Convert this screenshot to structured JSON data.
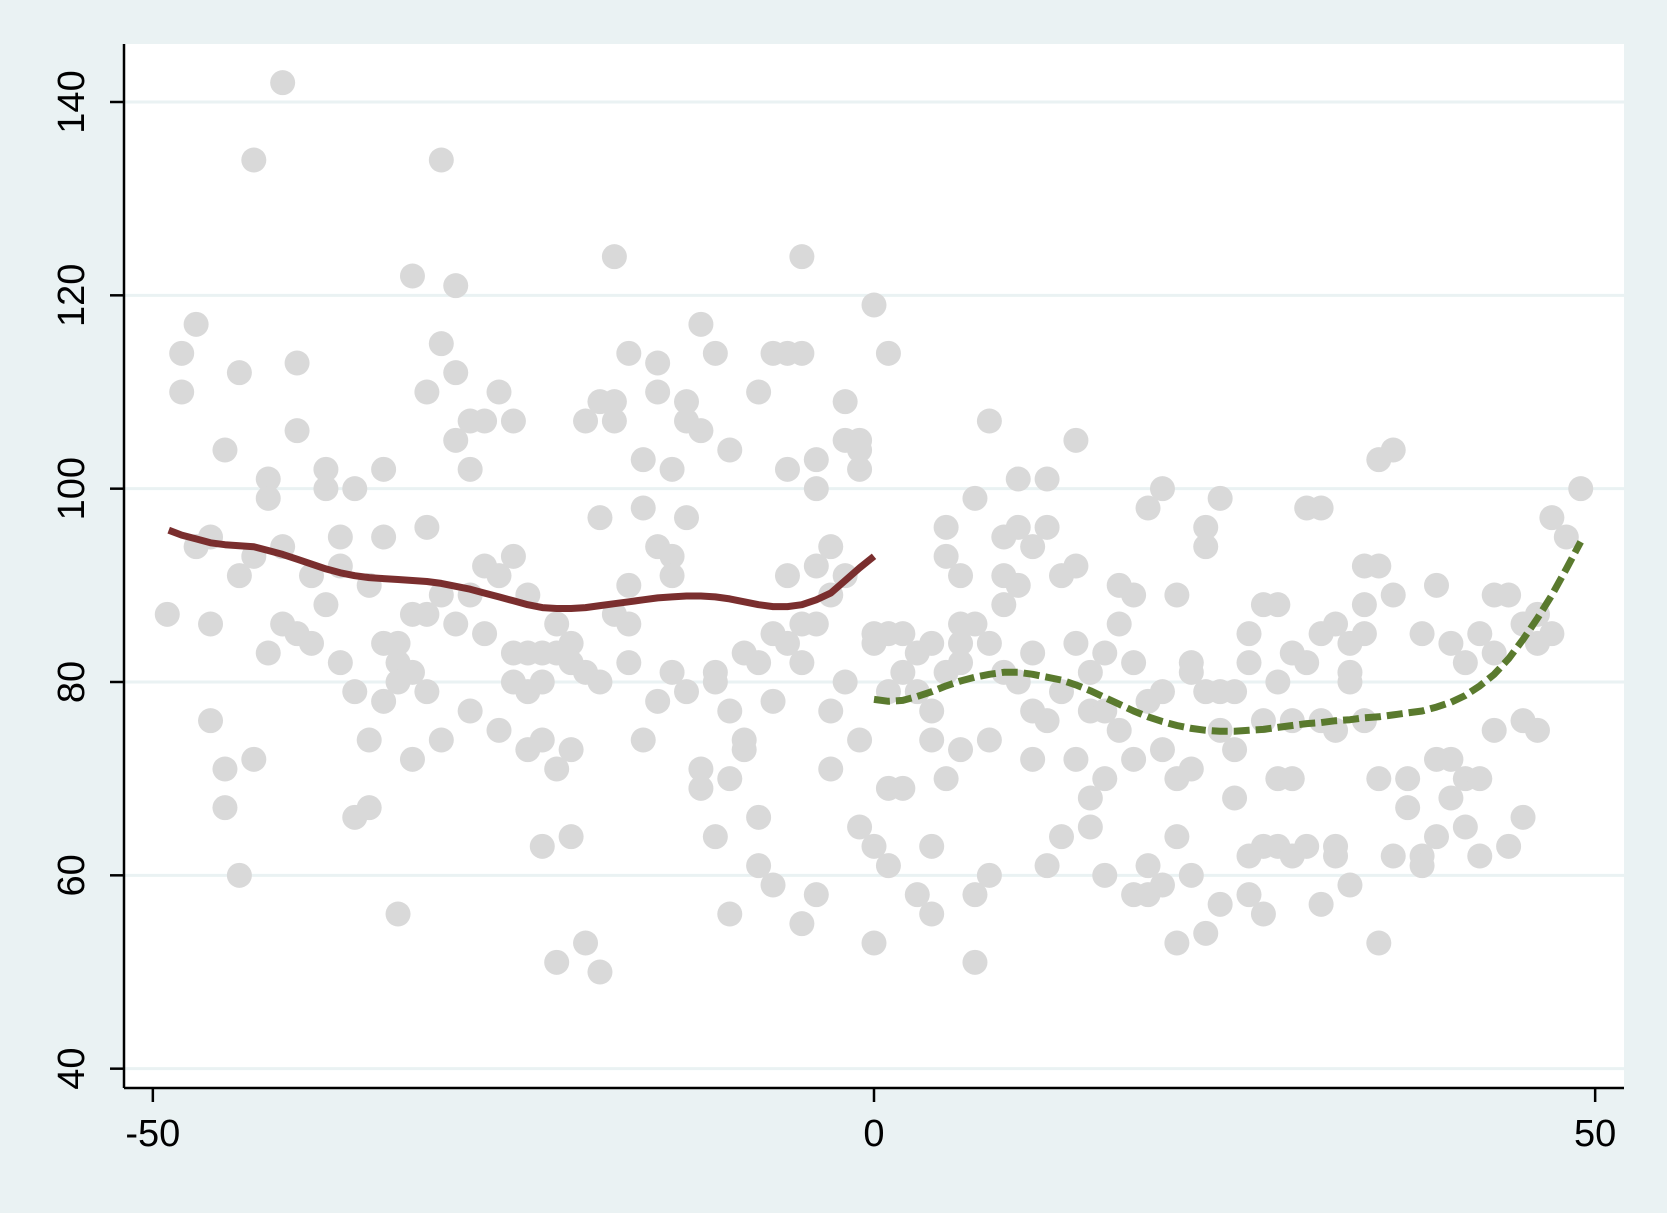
{
  "chart_data": {
    "type": "scatter",
    "title": "",
    "xlabel": "",
    "ylabel": "",
    "xlim": [
      -52,
      52
    ],
    "ylim": [
      38,
      146
    ],
    "x_ticks": [
      -50,
      0,
      50
    ],
    "y_ticks": [
      40,
      60,
      80,
      100,
      120,
      140
    ],
    "grid": "horizontal",
    "colors": {
      "background": "#eaf2f3",
      "plot_area": "#ffffff",
      "points": "#d9d9d9",
      "fit_left": "#7a2e2e",
      "fit_right": "#5a7a2e"
    },
    "scatter_points": [
      [
        -49,
        87
      ],
      [
        -48,
        114
      ],
      [
        -48,
        110
      ],
      [
        -47,
        117
      ],
      [
        -47,
        94
      ],
      [
        -46,
        95
      ],
      [
        -46,
        86
      ],
      [
        -46,
        76
      ],
      [
        -45,
        104
      ],
      [
        -45,
        71
      ],
      [
        -45,
        67
      ],
      [
        -44,
        112
      ],
      [
        -44,
        91
      ],
      [
        -44,
        60
      ],
      [
        -43,
        134
      ],
      [
        -43,
        93
      ],
      [
        -43,
        72
      ],
      [
        -42,
        101
      ],
      [
        -42,
        99
      ],
      [
        -42,
        83
      ],
      [
        -41,
        142
      ],
      [
        -41,
        94
      ],
      [
        -41,
        86
      ],
      [
        -40,
        113
      ],
      [
        -40,
        106
      ],
      [
        -40,
        85
      ],
      [
        -39,
        91
      ],
      [
        -39,
        84
      ],
      [
        -38,
        102
      ],
      [
        -38,
        100
      ],
      [
        -38,
        88
      ],
      [
        -37,
        95
      ],
      [
        -37,
        92
      ],
      [
        -37,
        82
      ],
      [
        -36,
        100
      ],
      [
        -36,
        79
      ],
      [
        -36,
        66
      ],
      [
        -35,
        90
      ],
      [
        -35,
        74
      ],
      [
        -35,
        67
      ],
      [
        -34,
        102
      ],
      [
        -34,
        95
      ],
      [
        -34,
        84
      ],
      [
        -34,
        78
      ],
      [
        -33,
        84
      ],
      [
        -33,
        82
      ],
      [
        -33,
        80
      ],
      [
        -33,
        56
      ],
      [
        -32,
        122
      ],
      [
        -32,
        87
      ],
      [
        -32,
        81
      ],
      [
        -32,
        72
      ],
      [
        -31,
        110
      ],
      [
        -31,
        96
      ],
      [
        -31,
        87
      ],
      [
        -31,
        79
      ],
      [
        -30,
        134
      ],
      [
        -30,
        115
      ],
      [
        -30,
        89
      ],
      [
        -30,
        74
      ],
      [
        -29,
        121
      ],
      [
        -29,
        112
      ],
      [
        -29,
        105
      ],
      [
        -29,
        86
      ],
      [
        -28,
        107
      ],
      [
        -28,
        102
      ],
      [
        -28,
        89
      ],
      [
        -28,
        77
      ],
      [
        -27,
        107
      ],
      [
        -27,
        92
      ],
      [
        -27,
        85
      ],
      [
        -26,
        110
      ],
      [
        -26,
        91
      ],
      [
        -26,
        75
      ],
      [
        -25,
        107
      ],
      [
        -25,
        93
      ],
      [
        -25,
        83
      ],
      [
        -25,
        80
      ],
      [
        -24,
        89
      ],
      [
        -24,
        83
      ],
      [
        -24,
        79
      ],
      [
        -24,
        73
      ],
      [
        -23,
        83
      ],
      [
        -23,
        80
      ],
      [
        -23,
        74
      ],
      [
        -23,
        63
      ],
      [
        -22,
        86
      ],
      [
        -22,
        83
      ],
      [
        -22,
        71
      ],
      [
        -22,
        51
      ],
      [
        -21,
        84
      ],
      [
        -21,
        82
      ],
      [
        -21,
        73
      ],
      [
        -21,
        64
      ],
      [
        -20,
        107
      ],
      [
        -20,
        81
      ],
      [
        -20,
        53
      ],
      [
        -19,
        109
      ],
      [
        -19,
        97
      ],
      [
        -19,
        80
      ],
      [
        -19,
        50
      ],
      [
        -18,
        124
      ],
      [
        -18,
        109
      ],
      [
        -18,
        107
      ],
      [
        -18,
        87
      ],
      [
        -17,
        114
      ],
      [
        -17,
        90
      ],
      [
        -17,
        86
      ],
      [
        -17,
        82
      ],
      [
        -16,
        103
      ],
      [
        -16,
        98
      ],
      [
        -16,
        74
      ],
      [
        -15,
        113
      ],
      [
        -15,
        110
      ],
      [
        -15,
        94
      ],
      [
        -15,
        78
      ],
      [
        -14,
        102
      ],
      [
        -14,
        93
      ],
      [
        -14,
        91
      ],
      [
        -14,
        81
      ],
      [
        -13,
        109
      ],
      [
        -13,
        107
      ],
      [
        -13,
        97
      ],
      [
        -13,
        79
      ],
      [
        -12,
        117
      ],
      [
        -12,
        106
      ],
      [
        -12,
        71
      ],
      [
        -12,
        69
      ],
      [
        -11,
        114
      ],
      [
        -11,
        81
      ],
      [
        -11,
        80
      ],
      [
        -11,
        64
      ],
      [
        -10,
        104
      ],
      [
        -10,
        77
      ],
      [
        -10,
        70
      ],
      [
        -10,
        56
      ],
      [
        -9,
        83
      ],
      [
        -9,
        74
      ],
      [
        -9,
        73
      ],
      [
        -8,
        110
      ],
      [
        -8,
        82
      ],
      [
        -8,
        66
      ],
      [
        -8,
        61
      ],
      [
        -7,
        114
      ],
      [
        -7,
        85
      ],
      [
        -7,
        78
      ],
      [
        -7,
        59
      ],
      [
        -6,
        114
      ],
      [
        -6,
        102
      ],
      [
        -6,
        91
      ],
      [
        -6,
        84
      ],
      [
        -5,
        124
      ],
      [
        -5,
        114
      ],
      [
        -5,
        86
      ],
      [
        -5,
        82
      ],
      [
        -5,
        55
      ],
      [
        -4,
        103
      ],
      [
        -4,
        100
      ],
      [
        -4,
        92
      ],
      [
        -4,
        86
      ],
      [
        -4,
        58
      ],
      [
        -3,
        94
      ],
      [
        -3,
        89
      ],
      [
        -3,
        77
      ],
      [
        -3,
        71
      ],
      [
        -2,
        109
      ],
      [
        -2,
        105
      ],
      [
        -2,
        91
      ],
      [
        -2,
        80
      ],
      [
        -1,
        105
      ],
      [
        -1,
        104
      ],
      [
        -1,
        102
      ],
      [
        -1,
        74
      ],
      [
        -1,
        65
      ],
      [
        0,
        119
      ],
      [
        0,
        85
      ],
      [
        0,
        84
      ],
      [
        0,
        63
      ],
      [
        0,
        53
      ],
      [
        1,
        114
      ],
      [
        1,
        85
      ],
      [
        1,
        79
      ],
      [
        1,
        69
      ],
      [
        1,
        61
      ],
      [
        2,
        85
      ],
      [
        2,
        81
      ],
      [
        2,
        69
      ],
      [
        3,
        83
      ],
      [
        3,
        79
      ],
      [
        3,
        58
      ],
      [
        4,
        84
      ],
      [
        4,
        77
      ],
      [
        4,
        74
      ],
      [
        4,
        63
      ],
      [
        4,
        56
      ],
      [
        5,
        96
      ],
      [
        5,
        93
      ],
      [
        5,
        81
      ],
      [
        5,
        70
      ],
      [
        6,
        86
      ],
      [
        6,
        84
      ],
      [
        6,
        82
      ],
      [
        6,
        73
      ],
      [
        6,
        91
      ],
      [
        7,
        99
      ],
      [
        7,
        86
      ],
      [
        7,
        58
      ],
      [
        7,
        51
      ],
      [
        8,
        107
      ],
      [
        8,
        84
      ],
      [
        8,
        74
      ],
      [
        8,
        60
      ],
      [
        9,
        95
      ],
      [
        9,
        91
      ],
      [
        9,
        88
      ],
      [
        9,
        81
      ],
      [
        10,
        101
      ],
      [
        10,
        96
      ],
      [
        10,
        90
      ],
      [
        10,
        80
      ],
      [
        11,
        94
      ],
      [
        11,
        83
      ],
      [
        11,
        77
      ],
      [
        11,
        72
      ],
      [
        12,
        101
      ],
      [
        12,
        96
      ],
      [
        12,
        76
      ],
      [
        12,
        61
      ],
      [
        13,
        91
      ],
      [
        13,
        79
      ],
      [
        13,
        64
      ],
      [
        14,
        105
      ],
      [
        14,
        92
      ],
      [
        14,
        84
      ],
      [
        14,
        72
      ],
      [
        15,
        81
      ],
      [
        15,
        77
      ],
      [
        15,
        68
      ],
      [
        15,
        65
      ],
      [
        16,
        83
      ],
      [
        16,
        77
      ],
      [
        16,
        70
      ],
      [
        16,
        60
      ],
      [
        17,
        90
      ],
      [
        17,
        86
      ],
      [
        17,
        75
      ],
      [
        18,
        89
      ],
      [
        18,
        82
      ],
      [
        18,
        72
      ],
      [
        18,
        58
      ],
      [
        19,
        98
      ],
      [
        19,
        78
      ],
      [
        19,
        61
      ],
      [
        19,
        58
      ],
      [
        20,
        100
      ],
      [
        20,
        79
      ],
      [
        20,
        73
      ],
      [
        20,
        59
      ],
      [
        21,
        89
      ],
      [
        21,
        70
      ],
      [
        21,
        64
      ],
      [
        21,
        53
      ],
      [
        22,
        82
      ],
      [
        22,
        81
      ],
      [
        22,
        71
      ],
      [
        22,
        60
      ],
      [
        23,
        96
      ],
      [
        23,
        94
      ],
      [
        23,
        79
      ],
      [
        23,
        54
      ],
      [
        24,
        99
      ],
      [
        24,
        79
      ],
      [
        24,
        75
      ],
      [
        24,
        57
      ],
      [
        25,
        79
      ],
      [
        25,
        73
      ],
      [
        25,
        68
      ],
      [
        26,
        85
      ],
      [
        26,
        82
      ],
      [
        26,
        62
      ],
      [
        26,
        58
      ],
      [
        27,
        88
      ],
      [
        27,
        76
      ],
      [
        27,
        63
      ],
      [
        27,
        56
      ],
      [
        28,
        88
      ],
      [
        28,
        80
      ],
      [
        28,
        70
      ],
      [
        28,
        63
      ],
      [
        29,
        83
      ],
      [
        29,
        76
      ],
      [
        29,
        70
      ],
      [
        29,
        62
      ],
      [
        30,
        98
      ],
      [
        30,
        82
      ],
      [
        30,
        63
      ],
      [
        31,
        98
      ],
      [
        31,
        85
      ],
      [
        31,
        76
      ],
      [
        31,
        57
      ],
      [
        32,
        86
      ],
      [
        32,
        75
      ],
      [
        32,
        63
      ],
      [
        32,
        62
      ],
      [
        33,
        84
      ],
      [
        33,
        81
      ],
      [
        33,
        80
      ],
      [
        33,
        59
      ],
      [
        34,
        92
      ],
      [
        34,
        88
      ],
      [
        34,
        85
      ],
      [
        34,
        76
      ],
      [
        35,
        103
      ],
      [
        35,
        92
      ],
      [
        35,
        70
      ],
      [
        35,
        53
      ],
      [
        36,
        104
      ],
      [
        36,
        89
      ],
      [
        36,
        62
      ],
      [
        37,
        70
      ],
      [
        37,
        67
      ],
      [
        38,
        85
      ],
      [
        38,
        62
      ],
      [
        38,
        61
      ],
      [
        39,
        90
      ],
      [
        39,
        72
      ],
      [
        39,
        64
      ],
      [
        40,
        84
      ],
      [
        40,
        72
      ],
      [
        40,
        68
      ],
      [
        41,
        82
      ],
      [
        41,
        70
      ],
      [
        41,
        65
      ],
      [
        42,
        85
      ],
      [
        42,
        70
      ],
      [
        42,
        62
      ],
      [
        43,
        89
      ],
      [
        43,
        83
      ],
      [
        43,
        75
      ],
      [
        44,
        89
      ],
      [
        44,
        63
      ],
      [
        45,
        86
      ],
      [
        45,
        76
      ],
      [
        45,
        66
      ],
      [
        46,
        87
      ],
      [
        46,
        84
      ],
      [
        46,
        75
      ],
      [
        47,
        97
      ],
      [
        47,
        85
      ],
      [
        48,
        95
      ],
      [
        49,
        100
      ]
    ],
    "series": [
      {
        "style": "solid",
        "x": [
          -48.9,
          -48,
          -47,
          -46,
          -45,
          -44,
          -43,
          -42,
          -41,
          -40,
          -39,
          -38,
          -37,
          -36,
          -35,
          -34,
          -33,
          -32,
          -31,
          -30,
          -29,
          -28,
          -27,
          -26,
          -25,
          -24,
          -23,
          -22,
          -21,
          -20,
          -19,
          -18,
          -17,
          -16,
          -15,
          -14,
          -13,
          -12,
          -11,
          -10,
          -9,
          -8,
          -7,
          -6,
          -5,
          -4,
          -3,
          -2,
          -1,
          0
        ],
        "y": [
          95.7,
          95.2,
          94.8,
          94.4,
          94.2,
          94.1,
          94,
          93.6,
          93.2,
          92.7,
          92.2,
          91.7,
          91.3,
          91.0,
          90.8,
          90.7,
          90.6,
          90.5,
          90.4,
          90.2,
          89.9,
          89.6,
          89.2,
          88.8,
          88.4,
          88.0,
          87.7,
          87.6,
          87.6,
          87.7,
          87.9,
          88.1,
          88.3,
          88.5,
          88.7,
          88.8,
          88.9,
          88.9,
          88.8,
          88.6,
          88.3,
          88.0,
          87.8,
          87.8,
          88.0,
          88.5,
          89.2,
          90.5,
          91.8,
          93.0
        ]
      },
      {
        "style": "dashed",
        "x": [
          0,
          1,
          2,
          3,
          4,
          5,
          6,
          7,
          8,
          9,
          10,
          11,
          12,
          13,
          14,
          15,
          16,
          17,
          18,
          19,
          20,
          21,
          22,
          23,
          24,
          25,
          26,
          27,
          28,
          29,
          30,
          31,
          32,
          33,
          34,
          35,
          36,
          37,
          38,
          39,
          40,
          41,
          42,
          43,
          44,
          45,
          46,
          47,
          48,
          49
        ],
        "y": [
          78.2,
          78.0,
          78.1,
          78.5,
          79.0,
          79.6,
          80.1,
          80.5,
          80.8,
          81.0,
          81.0,
          80.8,
          80.5,
          80.2,
          79.7,
          79.1,
          78.4,
          77.7,
          77.0,
          76.4,
          75.9,
          75.5,
          75.2,
          75.0,
          74.9,
          74.9,
          75.0,
          75.1,
          75.3,
          75.5,
          75.7,
          75.8,
          76.0,
          76.1,
          76.3,
          76.4,
          76.6,
          76.8,
          77.0,
          77.4,
          77.9,
          78.6,
          79.6,
          80.8,
          82.4,
          84.4,
          86.6,
          89.0,
          91.7,
          94.5
        ]
      }
    ]
  }
}
